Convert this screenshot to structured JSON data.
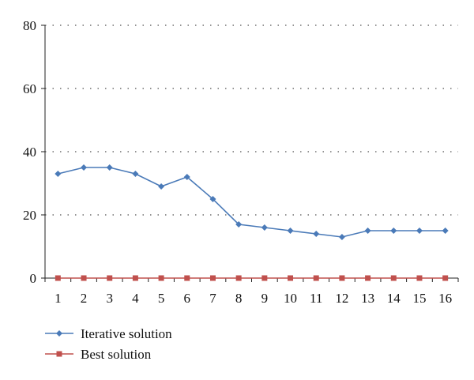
{
  "chart_data": {
    "type": "line",
    "title": "",
    "xlabel": "",
    "ylabel": "",
    "x": [
      1,
      2,
      3,
      4,
      5,
      6,
      7,
      8,
      9,
      10,
      11,
      12,
      13,
      14,
      15,
      16
    ],
    "x_tick_labels": [
      "1",
      "2",
      "3",
      "4",
      "5",
      "6",
      "7",
      "8",
      "9",
      "10",
      "11",
      "12",
      "13",
      "14",
      "15",
      "16"
    ],
    "ylim": [
      0,
      80
    ],
    "y_ticks": [
      0,
      20,
      40,
      60,
      80
    ],
    "y_tick_labels": [
      "0",
      "20",
      "40",
      "60",
      "80"
    ],
    "grid": "horizontal dotted",
    "legend_position": "bottom-left",
    "series": [
      {
        "name": "Iterative solution",
        "color": "#4a7ab8",
        "marker": "diamond",
        "values": [
          33,
          35,
          35,
          33,
          29,
          32,
          25,
          17,
          16,
          15,
          14,
          13,
          15,
          15,
          15,
          15
        ]
      },
      {
        "name": "Best solution",
        "color": "#c0504d",
        "marker": "square",
        "values": [
          0,
          0,
          0,
          0,
          0,
          0,
          0,
          0,
          0,
          0,
          0,
          0,
          0,
          0,
          0,
          0
        ]
      }
    ]
  }
}
